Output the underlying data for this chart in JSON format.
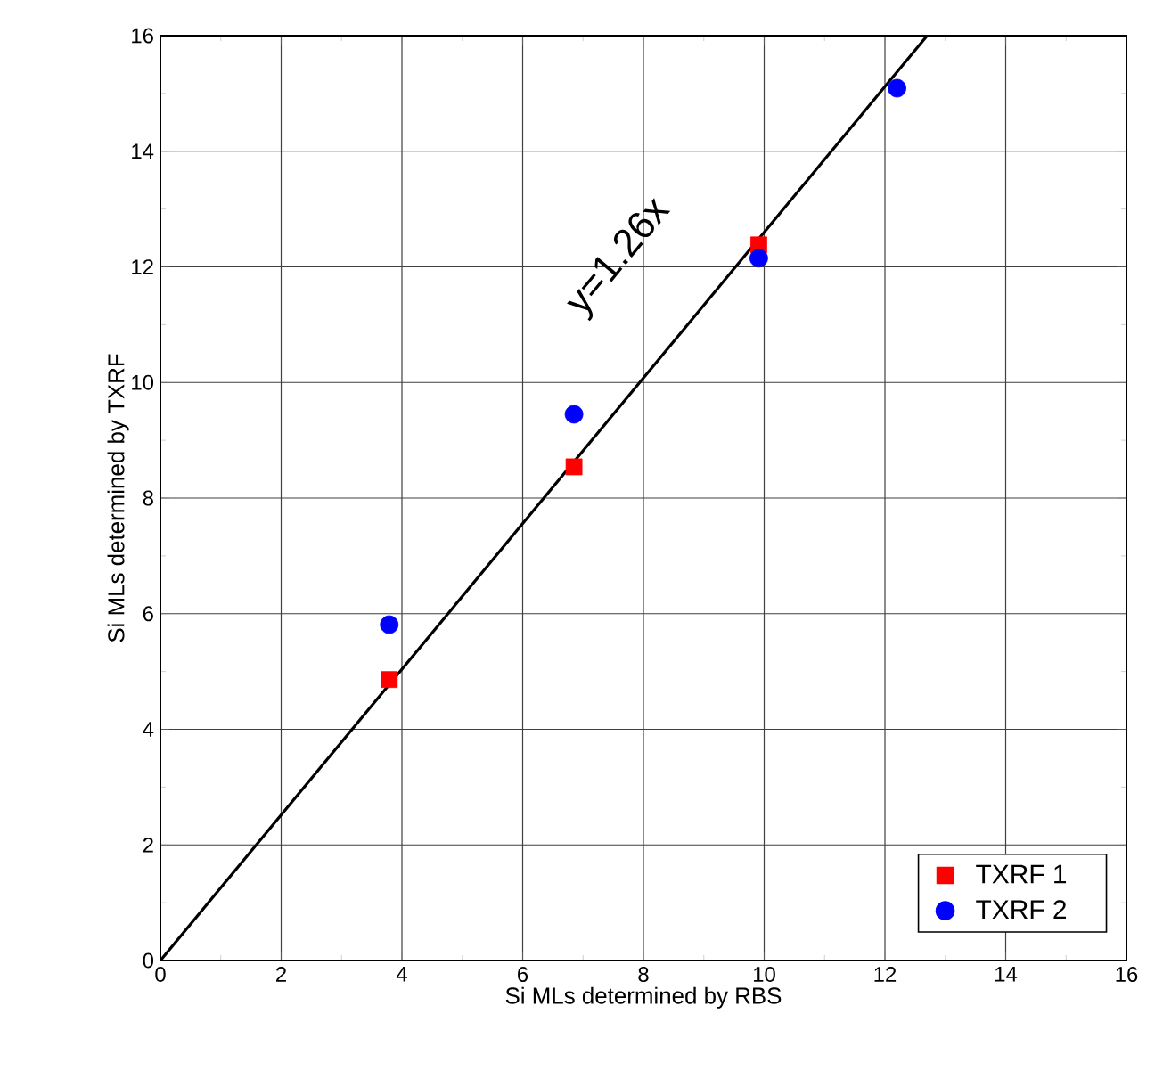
{
  "chart_data": {
    "type": "scatter",
    "xlabel": "Si MLs determined by RBS",
    "ylabel": "Si MLs determined by TXRF",
    "xlim": [
      0,
      16
    ],
    "ylim": [
      0,
      16
    ],
    "xticks": [
      0,
      2,
      4,
      6,
      8,
      10,
      12,
      14,
      16
    ],
    "yticks": [
      0,
      2,
      4,
      6,
      8,
      10,
      12,
      14,
      16
    ],
    "grid": true,
    "legend": "bottom right",
    "series": [
      {
        "name": "TXRF 1",
        "marker": "square",
        "color": "#ff0000",
        "x": [
          3.79,
          6.85,
          9.91
        ],
        "values": [
          4.86,
          8.54,
          12.38
        ]
      },
      {
        "name": "TXRF 2",
        "marker": "circle",
        "color": "#0000ff",
        "x": [
          3.79,
          6.85,
          9.91,
          12.2
        ],
        "values": [
          5.81,
          9.45,
          12.15,
          15.09
        ]
      },
      {
        "type": "line",
        "marker": "none",
        "line_style": "solid",
        "color": "#000000",
        "x": [
          0,
          12.7
        ],
        "values": [
          0,
          16.0
        ]
      }
    ],
    "annotations": [
      "y=1.26x"
    ]
  }
}
